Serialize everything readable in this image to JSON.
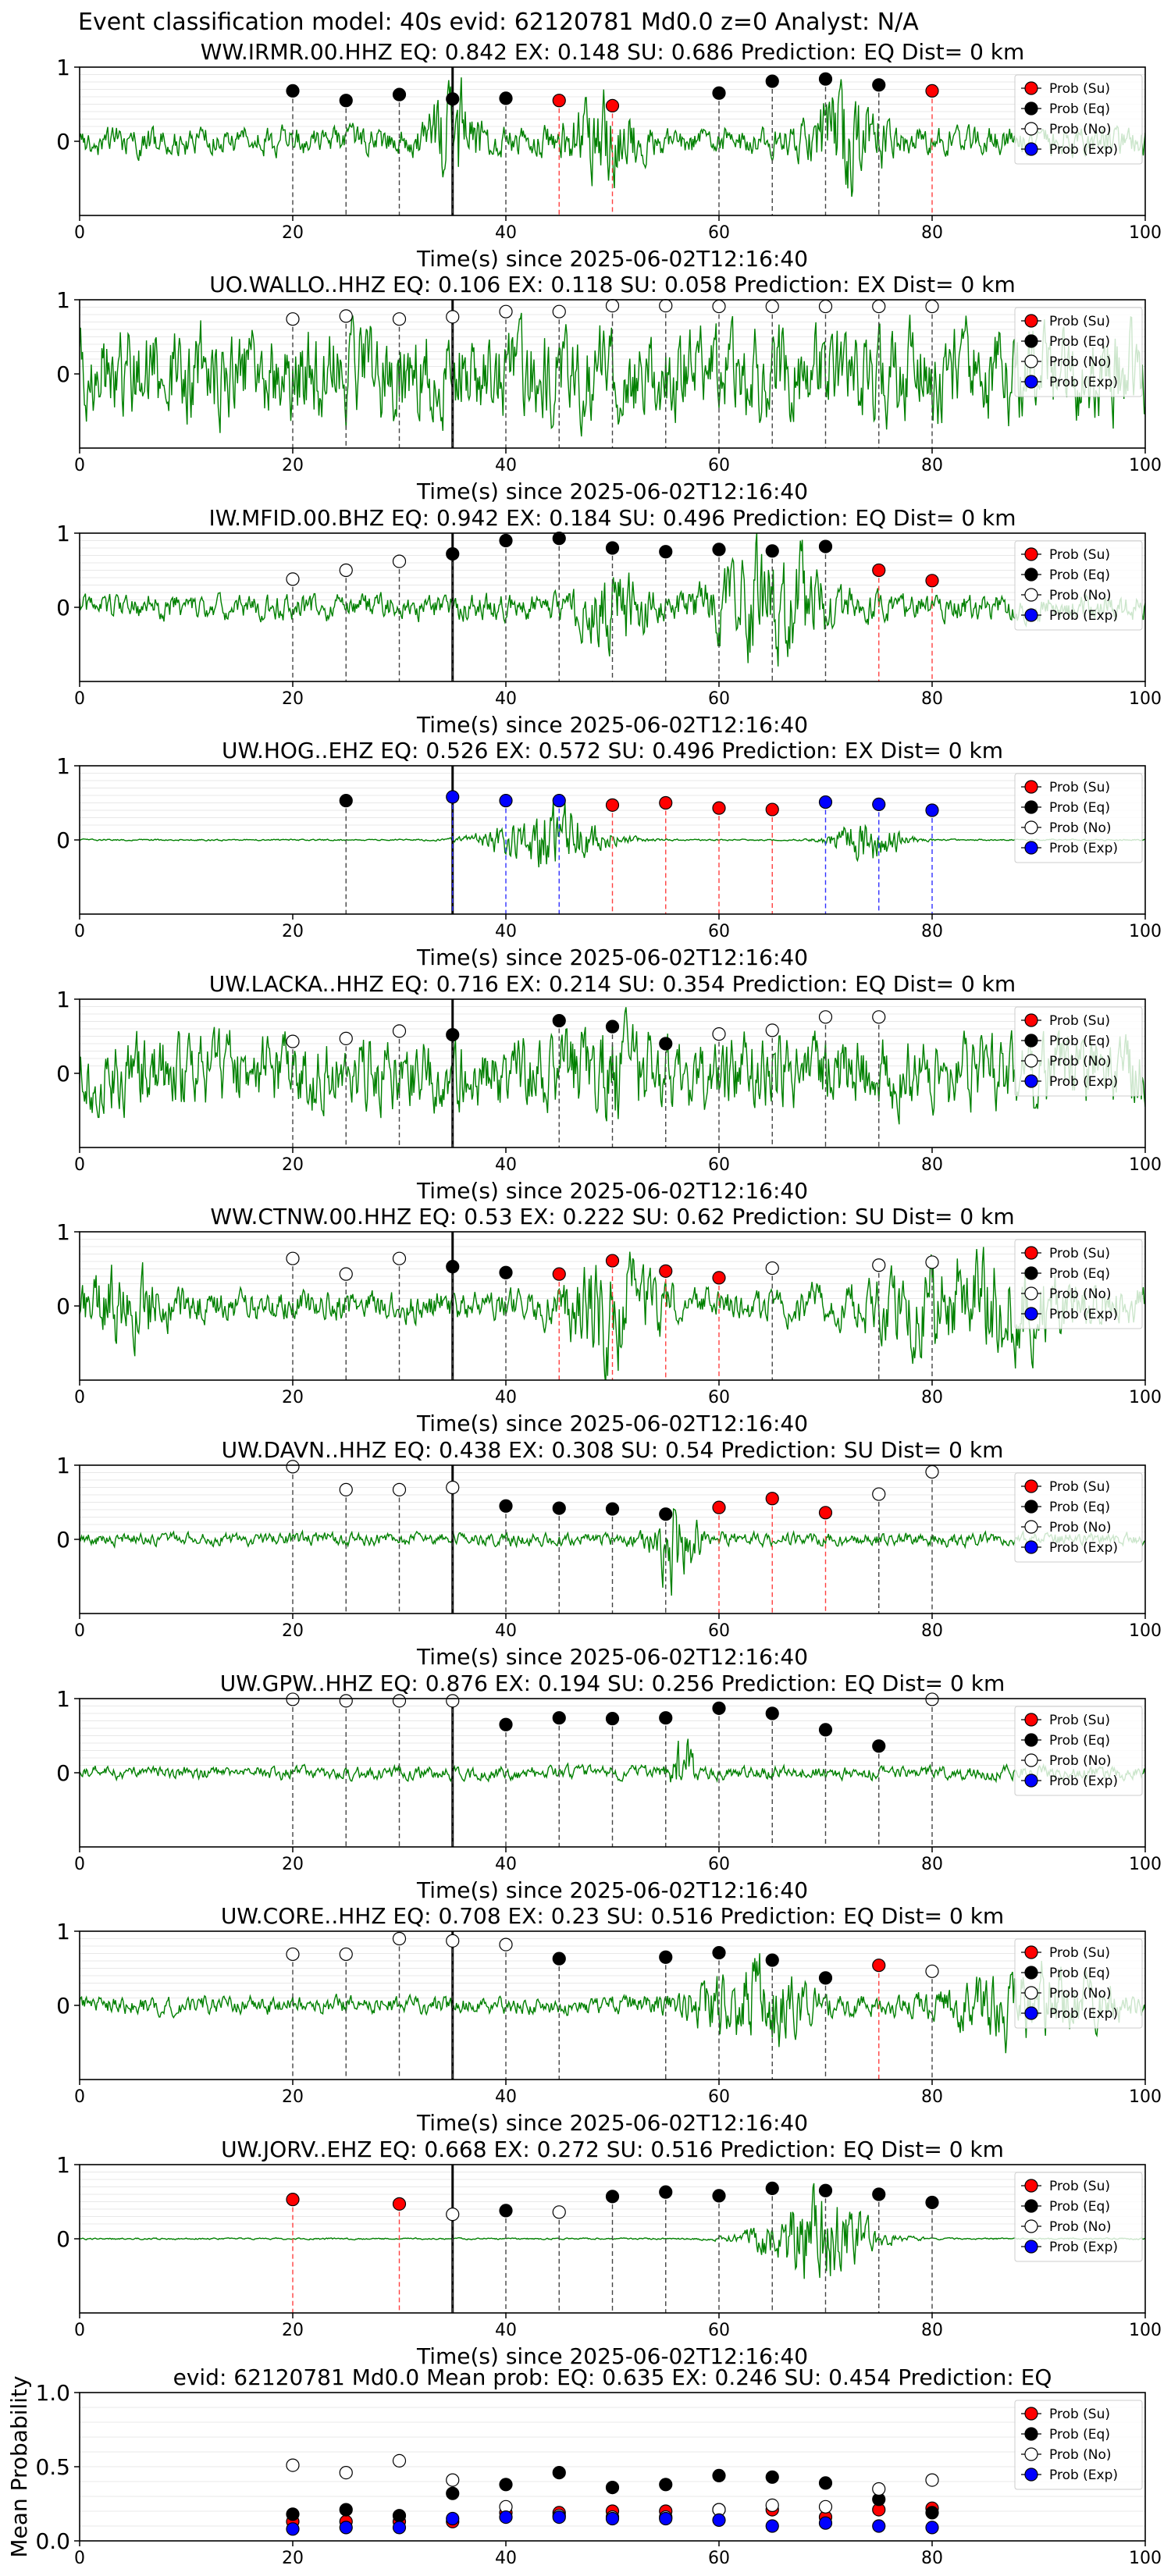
{
  "figure_title": "Event classification model: 40s evid: 62120781 Md0.0 z=0 Analyst: N/A",
  "legend_labels": [
    "Prob (Su)",
    "Prob (Eq)",
    "Prob (No)",
    "Prob (Exp)"
  ],
  "colors": {
    "su": "#ff0000",
    "eq": "#000000",
    "no": "#ffffff",
    "exp": "#0000ff",
    "waveform": "#008000",
    "pick_line": "#000000"
  },
  "chart_data": [
    {
      "type": "line",
      "title": "WW.IRMR.00.HHZ   EQ: 0.842  EX: 0.148  SU: 0.686   Prediction: EQ    Dist= 0 km",
      "xlabel": "Time(s) since 2025-06-02T12:16:40",
      "xlim": [
        0,
        100
      ],
      "ylim": [
        -1,
        1
      ],
      "xticks": [
        0,
        20,
        40,
        60,
        80,
        100
      ],
      "yticks": [
        0,
        1
      ],
      "pick_time": 35,
      "amp": 0.55,
      "seed": 1,
      "bursts": [
        [
          35,
          2,
          1.8
        ],
        [
          49,
          3,
          1.2
        ],
        [
          72,
          3,
          1.8
        ]
      ],
      "points": [
        {
          "t": 20,
          "p": 0.68,
          "c": "eq"
        },
        {
          "t": 25,
          "p": 0.55,
          "c": "eq"
        },
        {
          "t": 30,
          "p": 0.63,
          "c": "eq"
        },
        {
          "t": 35,
          "p": 0.57,
          "c": "eq"
        },
        {
          "t": 40,
          "p": 0.58,
          "c": "eq"
        },
        {
          "t": 45,
          "p": 0.55,
          "c": "su"
        },
        {
          "t": 50,
          "p": 0.48,
          "c": "su"
        },
        {
          "t": 60,
          "p": 0.65,
          "c": "eq"
        },
        {
          "t": 65,
          "p": 0.81,
          "c": "eq"
        },
        {
          "t": 70,
          "p": 0.84,
          "c": "eq"
        },
        {
          "t": 75,
          "p": 0.76,
          "c": "eq"
        },
        {
          "t": 80,
          "p": 0.68,
          "c": "su"
        }
      ]
    },
    {
      "type": "line",
      "title": "UO.WALLO..HHZ   EQ: 0.106  EX: 0.118  SU: 0.058   Prediction: EX    Dist= 0 km",
      "xlabel": "Time(s) since 2025-06-02T12:16:40",
      "xlim": [
        0,
        100
      ],
      "ylim": [
        -1,
        1
      ],
      "xticks": [
        0,
        20,
        40,
        60,
        80,
        100
      ],
      "yticks": [
        0,
        1
      ],
      "pick_time": 35,
      "amp": 1.8,
      "seed": 2,
      "bursts": [],
      "points": [
        {
          "t": 20,
          "p": 0.74,
          "c": "no"
        },
        {
          "t": 25,
          "p": 0.78,
          "c": "no"
        },
        {
          "t": 30,
          "p": 0.74,
          "c": "no"
        },
        {
          "t": 35,
          "p": 0.77,
          "c": "no"
        },
        {
          "t": 40,
          "p": 0.84,
          "c": "no"
        },
        {
          "t": 45,
          "p": 0.84,
          "c": "no"
        },
        {
          "t": 50,
          "p": 0.92,
          "c": "no"
        },
        {
          "t": 55,
          "p": 0.92,
          "c": "no"
        },
        {
          "t": 60,
          "p": 0.91,
          "c": "no"
        },
        {
          "t": 65,
          "p": 0.91,
          "c": "no"
        },
        {
          "t": 70,
          "p": 0.91,
          "c": "no"
        },
        {
          "t": 75,
          "p": 0.91,
          "c": "no"
        },
        {
          "t": 80,
          "p": 0.91,
          "c": "no"
        }
      ]
    },
    {
      "type": "line",
      "title": "IW.MFID.00.BHZ   EQ: 0.942  EX: 0.184  SU: 0.496   Prediction: EQ    Dist= 0 km",
      "xlabel": "Time(s) since 2025-06-02T12:16:40",
      "xlim": [
        0,
        100
      ],
      "ylim": [
        -1,
        1
      ],
      "xticks": [
        0,
        20,
        40,
        60,
        80,
        100
      ],
      "yticks": [
        0,
        1
      ],
      "pick_time": 35,
      "amp": 0.5,
      "seed": 3,
      "bursts": [
        [
          50,
          3,
          1.3
        ],
        [
          65,
          5,
          2.2
        ]
      ],
      "points": [
        {
          "t": 20,
          "p": 0.38,
          "c": "no"
        },
        {
          "t": 25,
          "p": 0.5,
          "c": "no"
        },
        {
          "t": 30,
          "p": 0.62,
          "c": "no"
        },
        {
          "t": 35,
          "p": 0.72,
          "c": "eq"
        },
        {
          "t": 40,
          "p": 0.9,
          "c": "eq"
        },
        {
          "t": 45,
          "p": 0.93,
          "c": "eq"
        },
        {
          "t": 50,
          "p": 0.8,
          "c": "eq"
        },
        {
          "t": 55,
          "p": 0.75,
          "c": "eq"
        },
        {
          "t": 60,
          "p": 0.78,
          "c": "eq"
        },
        {
          "t": 65,
          "p": 0.76,
          "c": "eq"
        },
        {
          "t": 70,
          "p": 0.82,
          "c": "eq"
        },
        {
          "t": 75,
          "p": 0.5,
          "c": "su"
        },
        {
          "t": 80,
          "p": 0.36,
          "c": "su"
        }
      ]
    },
    {
      "type": "line",
      "title": "UW.HOG..EHZ   EQ: 0.526  EX: 0.572  SU: 0.496   Prediction: EX    Dist= 0 km",
      "xlabel": "Time(s) since 2025-06-02T12:16:40",
      "xlim": [
        0,
        100
      ],
      "ylim": [
        -1,
        1
      ],
      "xticks": [
        0,
        20,
        40,
        60,
        80,
        100
      ],
      "yticks": [
        0,
        1
      ],
      "pick_time": 35,
      "amp": 0.03,
      "seed": 4,
      "bursts": [
        [
          44,
          5,
          1.4
        ],
        [
          74,
          3,
          1.0
        ]
      ],
      "points": [
        {
          "t": 25,
          "p": 0.53,
          "c": "eq"
        },
        {
          "t": 35,
          "p": 0.58,
          "c": "exp"
        },
        {
          "t": 40,
          "p": 0.53,
          "c": "exp"
        },
        {
          "t": 45,
          "p": 0.53,
          "c": "exp"
        },
        {
          "t": 50,
          "p": 0.47,
          "c": "su"
        },
        {
          "t": 55,
          "p": 0.5,
          "c": "su"
        },
        {
          "t": 60,
          "p": 0.43,
          "c": "su"
        },
        {
          "t": 65,
          "p": 0.41,
          "c": "su"
        },
        {
          "t": 70,
          "p": 0.51,
          "c": "exp"
        },
        {
          "t": 75,
          "p": 0.48,
          "c": "exp"
        },
        {
          "t": 80,
          "p": 0.4,
          "c": "exp"
        }
      ]
    },
    {
      "type": "line",
      "title": "UW.LACKA..HHZ   EQ: 0.716  EX: 0.214  SU: 0.354   Prediction: EQ    Dist= 0 km",
      "xlabel": "Time(s) since 2025-06-02T12:16:40",
      "xlim": [
        0,
        100
      ],
      "ylim": [
        -1,
        1
      ],
      "xticks": [
        0,
        20,
        40,
        60,
        80,
        100
      ],
      "yticks": [
        0,
        1
      ],
      "pick_time": 35,
      "amp": 1.4,
      "seed": 5,
      "bursts": [
        [
          50,
          4,
          0.6
        ]
      ],
      "points": [
        {
          "t": 20,
          "p": 0.43,
          "c": "no"
        },
        {
          "t": 25,
          "p": 0.47,
          "c": "no"
        },
        {
          "t": 30,
          "p": 0.57,
          "c": "no"
        },
        {
          "t": 35,
          "p": 0.52,
          "c": "eq"
        },
        {
          "t": 45,
          "p": 0.71,
          "c": "eq"
        },
        {
          "t": 50,
          "p": 0.63,
          "c": "eq"
        },
        {
          "t": 55,
          "p": 0.4,
          "c": "eq"
        },
        {
          "t": 60,
          "p": 0.53,
          "c": "no"
        },
        {
          "t": 65,
          "p": 0.58,
          "c": "no"
        },
        {
          "t": 70,
          "p": 0.76,
          "c": "no"
        },
        {
          "t": 75,
          "p": 0.76,
          "c": "no"
        }
      ]
    },
    {
      "type": "line",
      "title": "WW.CTNW.00.HHZ   EQ: 0.53  EX: 0.222  SU: 0.62   Prediction: SU    Dist= 0 km",
      "xlabel": "Time(s) since 2025-06-02T12:16:40",
      "xlim": [
        0,
        100
      ],
      "ylim": [
        -1,
        1
      ],
      "xticks": [
        0,
        20,
        40,
        60,
        80,
        100
      ],
      "yticks": [
        0,
        1
      ],
      "pick_time": 35,
      "amp": 0.6,
      "seed": 6,
      "bursts": [
        [
          4,
          4,
          1.0
        ],
        [
          50,
          4,
          1.8
        ],
        [
          84,
          10,
          1.5
        ]
      ],
      "points": [
        {
          "t": 20,
          "p": 0.64,
          "c": "no"
        },
        {
          "t": 25,
          "p": 0.43,
          "c": "no"
        },
        {
          "t": 30,
          "p": 0.64,
          "c": "no"
        },
        {
          "t": 35,
          "p": 0.53,
          "c": "eq"
        },
        {
          "t": 40,
          "p": 0.45,
          "c": "eq"
        },
        {
          "t": 45,
          "p": 0.43,
          "c": "su"
        },
        {
          "t": 50,
          "p": 0.61,
          "c": "su"
        },
        {
          "t": 55,
          "p": 0.47,
          "c": "su"
        },
        {
          "t": 60,
          "p": 0.38,
          "c": "su"
        },
        {
          "t": 65,
          "p": 0.51,
          "c": "no"
        },
        {
          "t": 75,
          "p": 0.55,
          "c": "no"
        },
        {
          "t": 80,
          "p": 0.59,
          "c": "no"
        }
      ]
    },
    {
      "type": "line",
      "title": "UW.DAVN..HHZ   EQ: 0.438  EX: 0.308  SU: 0.54   Prediction: SU    Dist= 0 km",
      "xlabel": "Time(s) since 2025-06-02T12:16:40",
      "xlim": [
        0,
        100
      ],
      "ylim": [
        -1,
        1
      ],
      "xticks": [
        0,
        20,
        40,
        60,
        80,
        100
      ],
      "yticks": [
        0,
        1
      ],
      "pick_time": 35,
      "amp": 0.25,
      "seed": 7,
      "bursts": [
        [
          56,
          2,
          1.8
        ]
      ],
      "points": [
        {
          "t": 20,
          "p": 0.98,
          "c": "no"
        },
        {
          "t": 25,
          "p": 0.67,
          "c": "no"
        },
        {
          "t": 30,
          "p": 0.67,
          "c": "no"
        },
        {
          "t": 35,
          "p": 0.7,
          "c": "no"
        },
        {
          "t": 40,
          "p": 0.45,
          "c": "eq"
        },
        {
          "t": 45,
          "p": 0.42,
          "c": "eq"
        },
        {
          "t": 50,
          "p": 0.41,
          "c": "eq"
        },
        {
          "t": 55,
          "p": 0.34,
          "c": "eq"
        },
        {
          "t": 60,
          "p": 0.43,
          "c": "su"
        },
        {
          "t": 65,
          "p": 0.55,
          "c": "su"
        },
        {
          "t": 70,
          "p": 0.36,
          "c": "su"
        },
        {
          "t": 75,
          "p": 0.61,
          "c": "no"
        },
        {
          "t": 80,
          "p": 0.91,
          "c": "no"
        }
      ]
    },
    {
      "type": "line",
      "title": "UW.GPW..HHZ   EQ: 0.876  EX: 0.194  SU: 0.256   Prediction: EQ    Dist= 0 km",
      "xlabel": "Time(s) since 2025-06-02T12:16:40",
      "xlim": [
        0,
        100
      ],
      "ylim": [
        -1,
        1
      ],
      "xticks": [
        0,
        20,
        40,
        60,
        80,
        100
      ],
      "yticks": [
        0,
        1
      ],
      "pick_time": 35,
      "amp": 0.25,
      "seed": 8,
      "bursts": [
        [
          56.5,
          1,
          1.5
        ]
      ],
      "points": [
        {
          "t": 20,
          "p": 0.99,
          "c": "no"
        },
        {
          "t": 25,
          "p": 0.97,
          "c": "no"
        },
        {
          "t": 30,
          "p": 0.97,
          "c": "no"
        },
        {
          "t": 35,
          "p": 0.97,
          "c": "no"
        },
        {
          "t": 40,
          "p": 0.65,
          "c": "eq"
        },
        {
          "t": 45,
          "p": 0.74,
          "c": "eq"
        },
        {
          "t": 50,
          "p": 0.73,
          "c": "eq"
        },
        {
          "t": 55,
          "p": 0.74,
          "c": "eq"
        },
        {
          "t": 60,
          "p": 0.87,
          "c": "eq"
        },
        {
          "t": 65,
          "p": 0.8,
          "c": "eq"
        },
        {
          "t": 70,
          "p": 0.58,
          "c": "eq"
        },
        {
          "t": 75,
          "p": 0.36,
          "c": "eq"
        },
        {
          "t": 80,
          "p": 0.99,
          "c": "no"
        }
      ]
    },
    {
      "type": "line",
      "title": "UW.CORE..HHZ   EQ: 0.708  EX: 0.23  SU: 0.516   Prediction: EQ    Dist= 0 km",
      "xlabel": "Time(s) since 2025-06-02T12:16:40",
      "xlim": [
        0,
        100
      ],
      "ylim": [
        -1,
        1
      ],
      "xticks": [
        0,
        20,
        40,
        60,
        80,
        100
      ],
      "yticks": [
        0,
        1
      ],
      "pick_time": 35,
      "amp": 0.35,
      "seed": 9,
      "bursts": [
        [
          63,
          5,
          1.6
        ],
        [
          89,
          7,
          1.3
        ]
      ],
      "points": [
        {
          "t": 20,
          "p": 0.69,
          "c": "no"
        },
        {
          "t": 25,
          "p": 0.69,
          "c": "no"
        },
        {
          "t": 30,
          "p": 0.9,
          "c": "no"
        },
        {
          "t": 35,
          "p": 0.87,
          "c": "no"
        },
        {
          "t": 40,
          "p": 0.82,
          "c": "no"
        },
        {
          "t": 45,
          "p": 0.63,
          "c": "eq"
        },
        {
          "t": 55,
          "p": 0.65,
          "c": "eq"
        },
        {
          "t": 60,
          "p": 0.71,
          "c": "eq"
        },
        {
          "t": 65,
          "p": 0.61,
          "c": "eq"
        },
        {
          "t": 70,
          "p": 0.37,
          "c": "eq"
        },
        {
          "t": 75,
          "p": 0.54,
          "c": "su"
        },
        {
          "t": 80,
          "p": 0.46,
          "c": "no"
        }
      ]
    },
    {
      "type": "line",
      "title": "UW.JORV..EHZ   EQ: 0.668  EX: 0.272  SU: 0.516   Prediction: EQ    Dist= 0 km",
      "xlabel": "Time(s) since 2025-06-02T12:16:40",
      "xlim": [
        0,
        100
      ],
      "ylim": [
        -1,
        1
      ],
      "xticks": [
        0,
        20,
        40,
        60,
        80,
        100
      ],
      "yticks": [
        0,
        1
      ],
      "pick_time": 35,
      "amp": 0.03,
      "seed": 10,
      "bursts": [
        [
          69,
          5,
          1.8
        ]
      ],
      "points": [
        {
          "t": 20,
          "p": 0.53,
          "c": "su"
        },
        {
          "t": 30,
          "p": 0.47,
          "c": "su"
        },
        {
          "t": 35,
          "p": 0.33,
          "c": "no"
        },
        {
          "t": 40,
          "p": 0.38,
          "c": "eq"
        },
        {
          "t": 45,
          "p": 0.36,
          "c": "no"
        },
        {
          "t": 50,
          "p": 0.57,
          "c": "eq"
        },
        {
          "t": 55,
          "p": 0.63,
          "c": "eq"
        },
        {
          "t": 60,
          "p": 0.58,
          "c": "eq"
        },
        {
          "t": 65,
          "p": 0.68,
          "c": "eq"
        },
        {
          "t": 70,
          "p": 0.65,
          "c": "eq"
        },
        {
          "t": 75,
          "p": 0.6,
          "c": "eq"
        },
        {
          "t": 80,
          "p": 0.49,
          "c": "eq"
        }
      ]
    },
    {
      "type": "scatter",
      "title": "evid: 62120781  Md0.0   Mean prob:   EQ: 0.635  EX: 0.246  SU: 0.454   Prediction: EQ",
      "ylabel": "Mean Probability",
      "xlim": [
        0,
        100
      ],
      "ylim": [
        0,
        1
      ],
      "xticks": [
        0,
        20,
        40,
        60,
        80,
        100
      ],
      "yticks": [
        0.0,
        0.5,
        1.0
      ],
      "ytick_labels": [
        "0.0",
        "0.5",
        "1.0"
      ],
      "x": [
        20,
        25,
        30,
        35,
        40,
        45,
        50,
        55,
        60,
        65,
        70,
        75,
        80
      ],
      "series": [
        {
          "name": "Prob (Su)",
          "key": "su",
          "values": [
            0.13,
            0.13,
            0.13,
            0.13,
            0.19,
            0.19,
            0.2,
            0.2,
            0.21,
            0.21,
            0.16,
            0.21,
            0.22
          ]
        },
        {
          "name": "Prob (Eq)",
          "key": "eq",
          "values": [
            0.18,
            0.21,
            0.17,
            0.32,
            0.38,
            0.46,
            0.36,
            0.38,
            0.44,
            0.43,
            0.39,
            0.28,
            0.19
          ]
        },
        {
          "name": "Prob (No)",
          "key": "no",
          "values": [
            0.51,
            0.46,
            0.54,
            0.41,
            0.23,
            0.17,
            0.16,
            0.16,
            0.21,
            0.24,
            0.23,
            0.35,
            0.41
          ]
        },
        {
          "name": "Prob (Exp)",
          "key": "exp",
          "values": [
            0.08,
            0.09,
            0.09,
            0.15,
            0.16,
            0.16,
            0.15,
            0.15,
            0.14,
            0.1,
            0.12,
            0.1,
            0.09
          ]
        }
      ]
    }
  ]
}
